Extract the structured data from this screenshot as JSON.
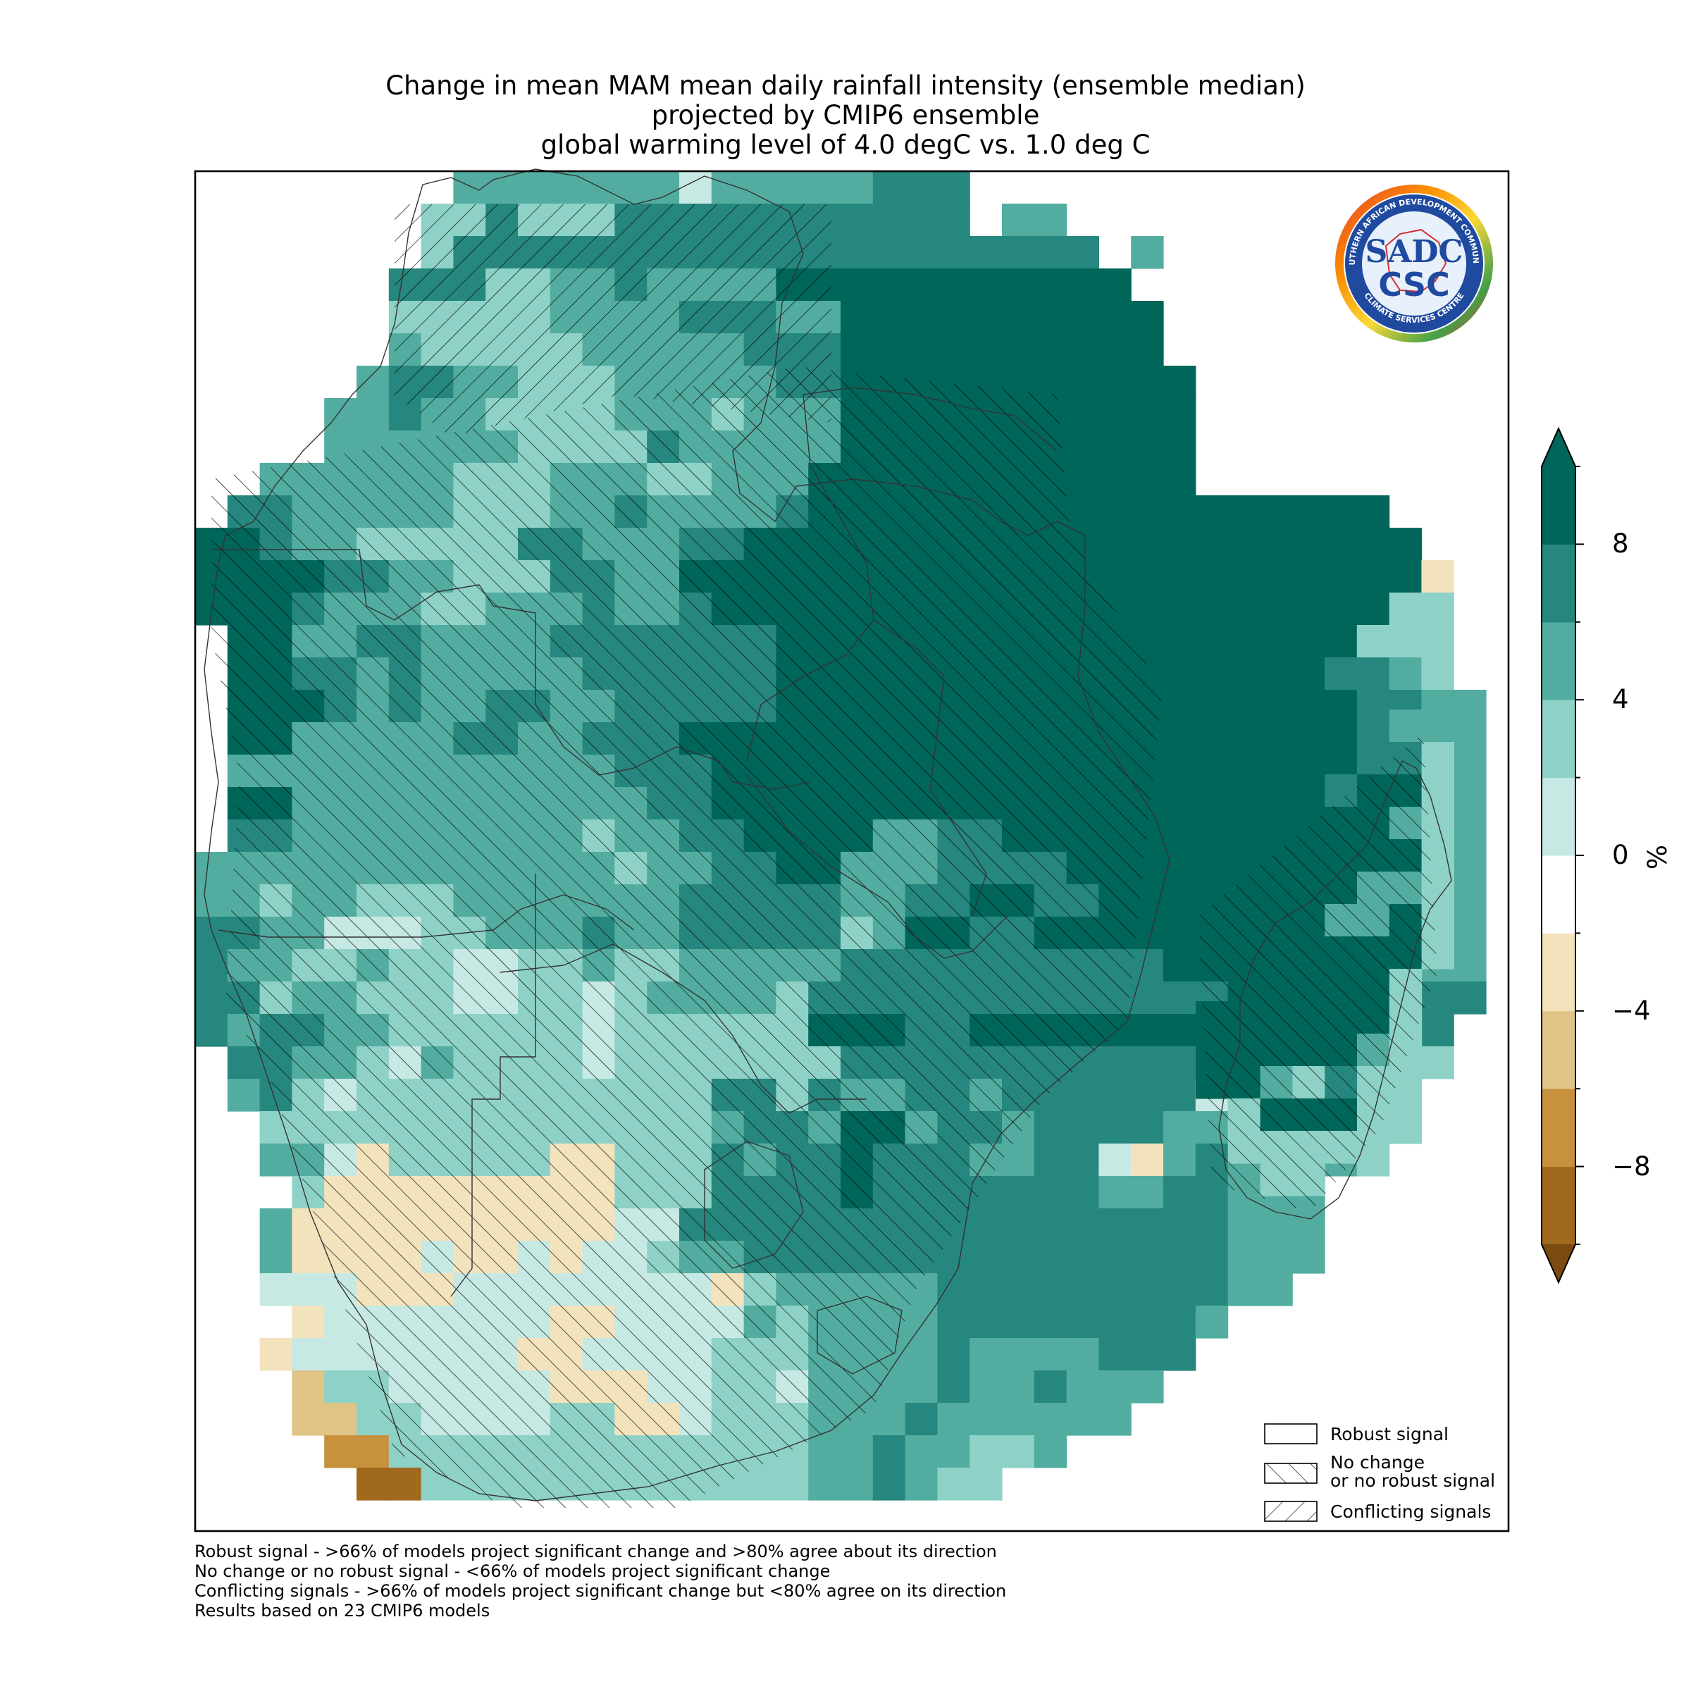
{
  "title": {
    "line1": "Change in mean MAM mean daily rainfall intensity (ensemble median)",
    "line2": "projected by CMIP6 ensemble",
    "line3": "global warming level of 4.0 degC vs. 1.0 deg C"
  },
  "logo": {
    "ring_text_top": "SOUTHERN AFRICAN DEVELOPMENT COMMUNITY",
    "ring_text_bottom": "CLIMATE SERVICES CENTRE",
    "monogram": "SADC",
    "acronym": "CSC"
  },
  "legend": {
    "robust": "Robust signal",
    "no_change_line1": "No change",
    "no_change_line2": "or no robust signal",
    "conflicting": "Conflicting signals"
  },
  "colorbar": {
    "unit": "%",
    "ticks": [
      "8",
      "4",
      "0",
      "−4",
      "−8"
    ],
    "tick_values": [
      8,
      4,
      0,
      -4,
      -8
    ],
    "range": [
      -10,
      10
    ],
    "extend": "both",
    "colors": [
      "#a0691e",
      "#c8913e",
      "#dfc485",
      "#f3e3bd",
      "#ffffff",
      "#c7e9e4",
      "#8ed2c7",
      "#52ada0",
      "#26877e",
      "#00665a"
    ]
  },
  "footnotes": [
    "Robust signal - >66% of models project significant change and >80% agree about its direction",
    "No change or no robust signal - <66% of models project significant change",
    "Conflicting signals - >66% of models project significant change but <80% agree on its direction",
    "Results based on 23 CMIP6 models"
  ],
  "map_data": {
    "variable": "change in mean MAM mean daily rainfall intensity",
    "unit": "%",
    "grid_cols": 40,
    "grid_rows": 41,
    "legend_codes": {
      "A": 9,
      "B": 7,
      "C": 5,
      "D": 3,
      "o": 0,
      "e": -3,
      "f": -5,
      "g": -7,
      "h": -9
    },
    "rows": [
      "........CCCCCCCoCCCCCBBB................",
      ".......DDBDDDBBBBBBBBBBB.CC.............",
      ".......DBBBBBBBBBBBBBBBBBBBB.C..........",
      "......BBBDDCCBCCCCAAAAAAAAAAA...........",
      "......DDDDDCCCCBBBCCAAAAAAAAAA..........",
      "......CDDDDDCCCCCBBBAAAAAAAAAA..........",
      ".....CBBCCDDDCCCCCBBAAAAAAAAAAA.........",
      "....CCBCCDDDDCCCDCCCAAAAAAAAAAA.........",
      "....CCCCCCDDDDBCCCCCAAAAAAAAAAA.........",
      "..CCCCCCDDDCCCDDCCCAAAAAAAAAAAA.........",
      ".BBCCCCCDDDCCBCCCCBAAAAAAAAAAAAAAAAAA...",
      "AABCCDDDDDBBCCCBBAAAAAAAAAAAAAAAAAAAAA..",
      "AAAABBCCDDDBBCCAAAAAAAAAAAAAAAAAAAAAAAe.",
      "AAABCCCDDCCCBCCBAAAAAAAAAAAAAAAAAAAAADD.",
      ".AACCBBCCCCBBBBBBBAAAAAAAAAAAAAAAAAADDD.",
      ".AABBCBCCCCCBBBBBBAAAAAAAAAAAAAAAAABBCD.",
      ".AAABCBCCBBCCBBBBBAAAAAAAAAAAAAAAAAABBCC",
      ".AACCCCCBBCCBBBAAAAAAAAAAAAAAAAAAAAABCDC",
      ".CCCCCCCCCCCCBBBAAAAAAAAAAAAAAAAAAAABCCC",
      ".AACCCCCCCCCCCBBAAAAAAAAAAAAAAAAAAAABCCC",
      ".BBCCCCCCCCCDCCBBAAAACCBBAAAAAAAAABBBCCC",
      "CCCCCCCCCCCCCDCCBBAACCCBBBBAAAAAAABBCCCC",
      "CCDCCDDDCCCCCCCBBBBBCCBBAABBAAAAAABCCCCC",
      "BBCCoooDDCCCBCCBBBBBDCAABBAAAAAAAABBCCCC",
      "BCCDDCDDooDDCDDCCCCCBBBBBBBBBBAAAABBBCCC",
      "BBDCCDDDooDDoDCCCCDBBBBBBBBBBBBBAAAABBBB",
      "BCBBCCDDDDDDoDDDDDDAAABBAAAAAAAAADDDDDB.",
      ".BBCCDoCDDDDoDDDDDDDBBBBBBBBBBBBBDDDDDD.",
      ".CBDoDDDDDDDDDDDBBDBCCBBCBBBBBBoDDDDDD..",
      "..DDDDDDDDDDDDDDCBBCAACBBCBBBBCCDDDDDD..",
      "..CCoeDDDDDeeDDDBCBBABBBCCBBoeCBCCCCD...",
      "...DeeeeeeeeeDDDBBBBABBBBBBBCCBBCCC.....",
      "..CeeeeeeeeeeooBBBBBBBBBBBBBBBBBCCC.....",
      "..CeeeeoeeoeooDCCBBBBBBBBBBBBBBBCCC.....",
      "..oooeeeooooooooeDCCCCCBBBBBBBBBCC......",
      "...eoooooooeeooooCDCCCCBBBBBBBBC........",
      "..eoooooooeeooooDDDCCCCBCCCCBBB.........",
      "...fDDoooooeeeooDDoCCCCBCCBCCC..........",
      "...ffDDooooDDeeoDDDCCCBCCCCCC...........",
      "....ggDDDDDDDDDDDDDCCBCCDDC.............",
      ".....hhDDDDDDDDDDDDCCBCDD..............."
    ],
    "madagascar_rows": [
      "..................................................",
      "......CC",
      ".....BBD",
      "....BAAD",
      "..AAAACD",
      "..AAAAAD",
      "..AAACCD",
      ".AAACCAD",
      ".AAAAAAD",
      ".AAAAAD.",
      "AAAAAAD.",
      "AAAAACD.",
      "AACDBDD.",
      ".DAAAD..",
      ".DDDD...",
      "..DD...."
    ]
  }
}
